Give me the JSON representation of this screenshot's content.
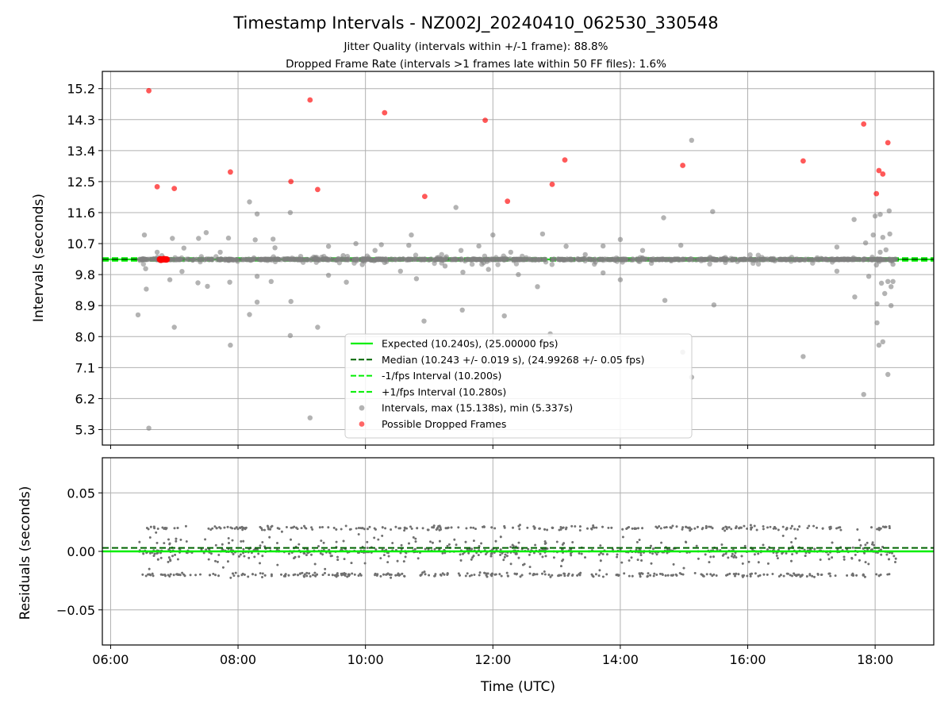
{
  "chart_data": [
    {
      "type": "scatter",
      "title": "Timestamp Intervals - NZ002J_20240410_062530_330548",
      "subtitle_lines": [
        "Jitter Quality (intervals within +/-1 frame): 88.8%",
        "Dropped Frame Rate (intervals >1 frames late within 50 FF files): 1.6%"
      ],
      "ylabel": "Intervals (seconds)",
      "xlim_hours": [
        5.87,
        18.92
      ],
      "ylim": [
        4.85,
        15.7
      ],
      "yticks": [
        5.3,
        6.2,
        7.1,
        8.0,
        8.9,
        9.8,
        10.7,
        11.6,
        12.5,
        13.4,
        14.3,
        15.2
      ],
      "ytick_labels": [
        "5.3",
        "6.2",
        "7.1",
        "8.0",
        "8.9",
        "9.8",
        "10.7",
        "11.6",
        "12.5",
        "13.4",
        "14.3",
        "15.2"
      ],
      "grid": true,
      "legend_placement": "lower-center",
      "reference_lines": {
        "expected": 10.24,
        "median": 10.243,
        "minus_fps": 10.2,
        "plus_fps": 10.28
      },
      "legend": [
        {
          "label": "Expected (10.240s), (25.00000 fps)",
          "style": "solid",
          "color": "#00ee00"
        },
        {
          "label": "Median (10.243 +/- 0.019 s), (24.99268 +/- 0.05 fps)",
          "style": "dashed",
          "color": "#006400"
        },
        {
          "label": "-1/fps Interval (10.200s)",
          "style": "dashed",
          "color": "#00ee00"
        },
        {
          "label": "+1/fps Interval (10.280s)",
          "style": "dashed",
          "color": "#00ee00"
        },
        {
          "label": "Intervals, max (15.138s), min (5.337s)",
          "style": "marker",
          "color": "#808080"
        },
        {
          "label": "Possible Dropped Frames",
          "style": "marker",
          "color": "#ff0000"
        }
      ],
      "dropped_frames": [
        [
          6.6,
          15.14
        ],
        [
          6.73,
          12.35
        ],
        [
          7.0,
          12.3
        ],
        [
          7.88,
          12.78
        ],
        [
          8.83,
          12.5
        ],
        [
          9.13,
          14.87
        ],
        [
          9.25,
          12.27
        ],
        [
          10.3,
          14.5
        ],
        [
          10.93,
          12.07
        ],
        [
          11.88,
          14.28
        ],
        [
          12.23,
          11.93
        ],
        [
          12.93,
          12.42
        ],
        [
          13.13,
          13.13
        ],
        [
          14.98,
          12.97
        ],
        [
          16.87,
          13.1
        ],
        [
          17.82,
          14.17
        ],
        [
          18.02,
          12.15
        ],
        [
          18.06,
          12.82
        ],
        [
          18.12,
          12.72
        ],
        [
          18.2,
          13.63
        ],
        [
          6.78,
          10.24
        ],
        [
          6.82,
          10.24
        ],
        [
          6.86,
          10.24
        ]
      ],
      "outlier_intervals": [
        [
          6.43,
          8.63
        ],
        [
          6.53,
          10.95
        ],
        [
          6.55,
          9.97
        ],
        [
          6.56,
          9.38
        ],
        [
          6.6,
          5.34
        ],
        [
          6.73,
          10.45
        ],
        [
          6.93,
          9.65
        ],
        [
          6.97,
          10.85
        ],
        [
          7.0,
          8.27
        ],
        [
          7.12,
          9.89
        ],
        [
          7.15,
          10.57
        ],
        [
          7.37,
          9.56
        ],
        [
          7.38,
          10.85
        ],
        [
          7.5,
          11.02
        ],
        [
          7.52,
          9.46
        ],
        [
          7.72,
          10.45
        ],
        [
          7.85,
          10.86
        ],
        [
          7.87,
          9.58
        ],
        [
          7.88,
          7.75
        ],
        [
          8.18,
          8.64
        ],
        [
          8.18,
          11.91
        ],
        [
          8.27,
          10.81
        ],
        [
          8.3,
          11.56
        ],
        [
          8.3,
          9.75
        ],
        [
          8.3,
          9.0
        ],
        [
          8.52,
          9.6
        ],
        [
          8.55,
          10.83
        ],
        [
          8.58,
          10.58
        ],
        [
          8.82,
          11.6
        ],
        [
          8.83,
          9.02
        ],
        [
          8.82,
          8.03
        ],
        [
          9.13,
          5.64
        ],
        [
          9.25,
          8.27
        ],
        [
          9.42,
          10.62
        ],
        [
          9.42,
          9.78
        ],
        [
          9.65,
          10.35
        ],
        [
          9.7,
          9.58
        ],
        [
          9.85,
          10.7
        ],
        [
          9.95,
          10.09
        ],
        [
          10.15,
          10.5
        ],
        [
          10.25,
          10.67
        ],
        [
          10.3,
          10.15
        ],
        [
          10.55,
          9.9
        ],
        [
          10.68,
          10.65
        ],
        [
          10.72,
          10.95
        ],
        [
          10.8,
          9.68
        ],
        [
          10.92,
          8.45
        ],
        [
          11.25,
          10.05
        ],
        [
          11.42,
          11.75
        ],
        [
          11.5,
          10.5
        ],
        [
          11.53,
          9.87
        ],
        [
          11.52,
          8.77
        ],
        [
          11.78,
          10.63
        ],
        [
          11.93,
          9.95
        ],
        [
          12.0,
          10.95
        ],
        [
          12.18,
          8.6
        ],
        [
          12.28,
          10.45
        ],
        [
          12.4,
          9.8
        ],
        [
          12.7,
          9.45
        ],
        [
          12.78,
          10.98
        ],
        [
          12.9,
          8.08
        ],
        [
          13.15,
          10.62
        ],
        [
          13.45,
          10.38
        ],
        [
          13.73,
          10.63
        ],
        [
          13.73,
          9.85
        ],
        [
          14.0,
          9.65
        ],
        [
          14.0,
          10.82
        ],
        [
          14.35,
          10.5
        ],
        [
          14.68,
          11.45
        ],
        [
          14.7,
          9.05
        ],
        [
          14.95,
          10.65
        ],
        [
          14.98,
          7.55
        ],
        [
          15.12,
          13.7
        ],
        [
          15.12,
          6.82
        ],
        [
          15.45,
          11.63
        ],
        [
          15.47,
          8.92
        ],
        [
          16.87,
          7.42
        ],
        [
          17.4,
          10.6
        ],
        [
          17.4,
          9.9
        ],
        [
          17.67,
          11.4
        ],
        [
          17.68,
          9.15
        ],
        [
          17.82,
          6.32
        ],
        [
          17.85,
          10.72
        ],
        [
          17.9,
          9.75
        ],
        [
          17.97,
          10.95
        ],
        [
          18.0,
          11.5
        ],
        [
          18.02,
          10.08
        ],
        [
          18.03,
          8.95
        ],
        [
          18.03,
          8.4
        ],
        [
          18.06,
          7.75
        ],
        [
          18.08,
          11.55
        ],
        [
          18.08,
          10.45
        ],
        [
          18.1,
          9.55
        ],
        [
          18.12,
          10.88
        ],
        [
          18.12,
          7.85
        ],
        [
          18.15,
          9.25
        ],
        [
          18.17,
          10.52
        ],
        [
          18.2,
          9.6
        ],
        [
          18.2,
          6.9
        ],
        [
          18.22,
          11.65
        ],
        [
          18.23,
          10.98
        ],
        [
          18.25,
          9.45
        ],
        [
          18.25,
          8.9
        ],
        [
          18.28,
          9.6
        ],
        [
          18.28,
          10.1
        ]
      ]
    },
    {
      "type": "scatter",
      "xlabel": "Time (UTC)",
      "ylabel": "Residuals (seconds)",
      "xlim_hours": [
        5.87,
        18.92
      ],
      "ylim": [
        -0.08,
        0.08
      ],
      "yticks": [
        -0.05,
        0.0,
        0.05
      ],
      "ytick_labels": [
        "−0.05",
        "0.00",
        "0.05"
      ],
      "xticks_hours": [
        6,
        8,
        10,
        12,
        14,
        16,
        18
      ],
      "xtick_labels": [
        "06:00",
        "08:00",
        "10:00",
        "12:00",
        "14:00",
        "16:00",
        "18:00"
      ],
      "grid": true,
      "reference_lines": {
        "expected_residual": 0.0,
        "median_residual": 0.003
      },
      "time_range_hours": [
        6.45,
        18.33
      ],
      "residual_bands": [
        -0.02,
        0.0,
        0.02
      ],
      "residual_range": [
        -0.075,
        0.072
      ]
    }
  ]
}
